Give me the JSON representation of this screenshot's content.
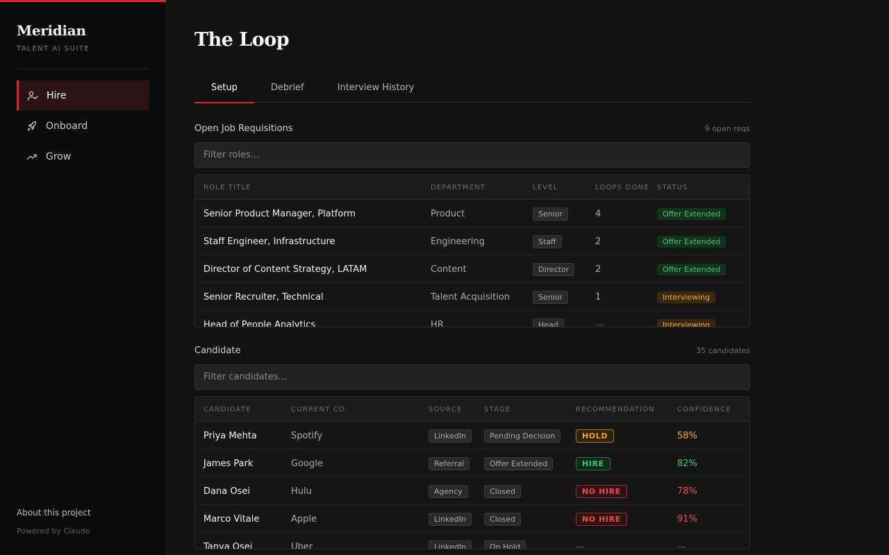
{
  "colors": {
    "accent": "#e0242b",
    "green": "#3ec46d",
    "amber": "#f5a524",
    "red": "#f04848"
  },
  "sidebar": {
    "brand": "Meridian",
    "brand_sub": "TALENT AI SUITE",
    "items": [
      {
        "label": "Hire",
        "icon": "user-check-icon",
        "active": true
      },
      {
        "label": "Onboard",
        "icon": "rocket-icon",
        "active": false
      },
      {
        "label": "Grow",
        "icon": "trending-up-icon",
        "active": false
      }
    ],
    "about": "About this project",
    "powered": "Powered by Claude"
  },
  "main": {
    "title": "The Loop",
    "tabs": [
      {
        "label": "Setup",
        "active": true
      },
      {
        "label": "Debrief",
        "active": false
      },
      {
        "label": "Interview History",
        "active": false
      }
    ]
  },
  "requisitions": {
    "title": "Open Job Requisitions",
    "count": "9 open reqs",
    "filter_placeholder": "Filter roles...",
    "columns": [
      "ROLE TITLE",
      "DEPARTMENT",
      "LEVEL",
      "LOOPS DONE",
      "STATUS"
    ],
    "rows": [
      {
        "title": "Senior Product Manager, Platform",
        "department": "Product",
        "level": "Senior",
        "loops": "4",
        "status": "Offer Extended",
        "status_color": "green"
      },
      {
        "title": "Staff Engineer, Infrastructure",
        "department": "Engineering",
        "level": "Staff",
        "loops": "2",
        "status": "Offer Extended",
        "status_color": "green"
      },
      {
        "title": "Director of Content Strategy, LATAM",
        "department": "Content",
        "level": "Director",
        "loops": "2",
        "status": "Offer Extended",
        "status_color": "green"
      },
      {
        "title": "Senior Recruiter, Technical",
        "department": "Talent Acquisition",
        "level": "Senior",
        "loops": "1",
        "status": "Interviewing",
        "status_color": "amber"
      },
      {
        "title": "Head of People Analytics",
        "department": "HR",
        "level": "Head",
        "loops": "—",
        "status": "Interviewing",
        "status_color": "amber"
      }
    ]
  },
  "candidates": {
    "title": "Candidate",
    "count": "35 candidates",
    "filter_placeholder": "Filter candidates...",
    "columns": [
      "CANDIDATE",
      "CURRENT CO.",
      "SOURCE",
      "STAGE",
      "RECOMMENDATION",
      "CONFIDENCE"
    ],
    "rows": [
      {
        "name": "Priya Mehta",
        "company": "Spotify",
        "source": "LinkedIn",
        "stage": "Pending Decision",
        "recommendation": "HOLD",
        "rec_color": "amber",
        "confidence": "58%"
      },
      {
        "name": "James Park",
        "company": "Google",
        "source": "Referral",
        "stage": "Offer Extended",
        "recommendation": "HIRE",
        "rec_color": "green",
        "confidence": "82%"
      },
      {
        "name": "Dana Osei",
        "company": "Hulu",
        "source": "Agency",
        "stage": "Closed",
        "recommendation": "NO HIRE",
        "rec_color": "red",
        "confidence": "78%"
      },
      {
        "name": "Marco Vitale",
        "company": "Apple",
        "source": "LinkedIn",
        "stage": "Closed",
        "recommendation": "NO HIRE",
        "rec_color": "red",
        "confidence": "91%"
      },
      {
        "name": "Tanya Osei",
        "company": "Uber",
        "source": "LinkedIn",
        "stage": "On Hold",
        "recommendation": "—",
        "rec_color": "none",
        "confidence": "—"
      }
    ]
  }
}
